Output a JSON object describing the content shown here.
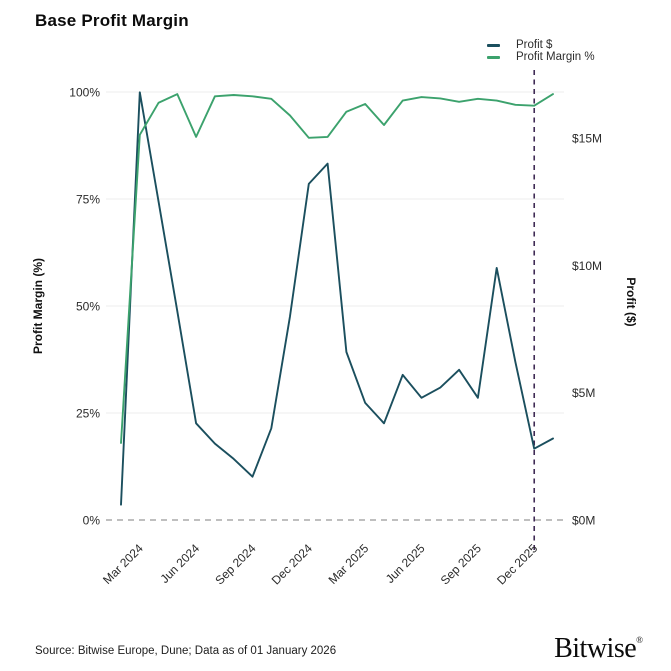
{
  "title": "Base Profit Margin",
  "legend": [
    {
      "label": "Profit $",
      "color": "#1b4f5e"
    },
    {
      "label": "Profit Margin %",
      "color": "#3ca26d"
    }
  ],
  "footer": {
    "source": "Source: Bitwise Europe, Dune; Data as of 01 January 2026",
    "brand": "Bitwise",
    "registered": "®"
  },
  "colors": {
    "profit_line": "#1b4f5e",
    "margin_line": "#3ca26d",
    "event_dashed_line": "#3f2a54",
    "zero_dashed_line": "#999999",
    "gridline": "#ececec"
  },
  "chart_data": {
    "type": "line",
    "title": "Base Profit Margin",
    "x": [
      "Feb 2024",
      "Mar 2024",
      "Apr 2024",
      "May 2024",
      "Jun 2024",
      "Jul 2024",
      "Aug 2024",
      "Sep 2024",
      "Oct 2024",
      "Nov 2024",
      "Dec 2024",
      "Jan 2025",
      "Feb 2025",
      "Mar 2025",
      "Apr 2025",
      "May 2025",
      "Jun 2025",
      "Jul 2025",
      "Aug 2025",
      "Sep 2025",
      "Oct 2025",
      "Nov 2025",
      "Dec 2025",
      "Jan 2026"
    ],
    "x_tick_labels": [
      "Mar 2024",
      "Jun 2024",
      "Sep 2024",
      "Dec 2024",
      "Mar 2025",
      "Jun 2025",
      "Sep 2025",
      "Dec 2025"
    ],
    "series": [
      {
        "name": "Profit $",
        "axis": "right",
        "unit": "$M",
        "values": [
          0.6,
          16.8,
          12.5,
          8.2,
          3.8,
          3.0,
          2.4,
          1.7,
          3.6,
          8.0,
          13.2,
          14.0,
          6.6,
          4.6,
          3.8,
          5.7,
          4.8,
          5.2,
          5.9,
          4.8,
          9.9,
          6.2,
          2.8,
          3.2
        ]
      },
      {
        "name": "Profit Margin %",
        "axis": "left",
        "unit": "%",
        "values": [
          18,
          90,
          97.5,
          99.5,
          89.5,
          99,
          99.3,
          99,
          98.4,
          94.5,
          89.3,
          89.5,
          95.4,
          97.2,
          92.3,
          98,
          98.8,
          98.5,
          97.7,
          98.4,
          98,
          97,
          96.8,
          99.5
        ]
      }
    ],
    "left_axis": {
      "label": "Profit Margin (%)",
      "ticks": [
        "0%",
        "25%",
        "50%",
        "75%",
        "100%"
      ],
      "tick_values": [
        0,
        25,
        50,
        75,
        100
      ],
      "range": [
        0,
        100
      ]
    },
    "right_axis": {
      "label": "Profit ($)",
      "ticks": [
        "$0M",
        "$5M",
        "$10M",
        "$15M"
      ],
      "tick_values": [
        0,
        5,
        10,
        15
      ],
      "range": [
        0,
        16.8
      ]
    },
    "annotations": {
      "vertical_dashed_line_at": "Dec 2025",
      "horizontal_dashed_line_at_value": 0
    },
    "grid": true,
    "legend_position": "top-right"
  }
}
